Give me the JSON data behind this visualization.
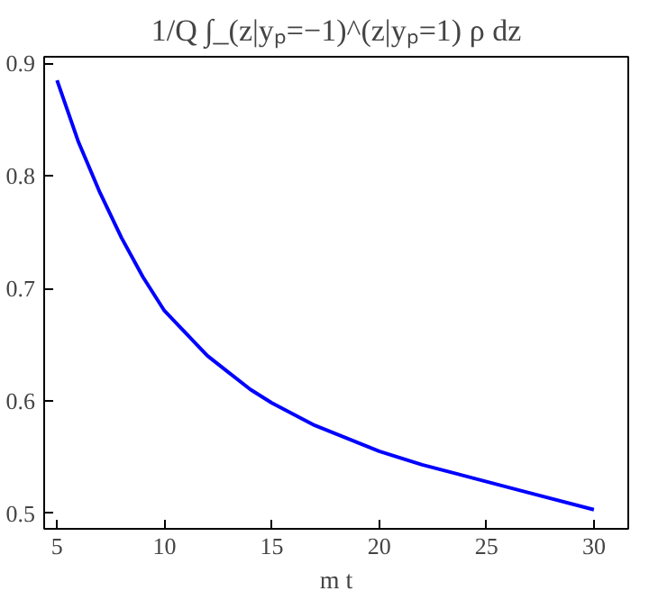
{
  "chart_data": {
    "type": "line",
    "title": "1/Q ∫_(z|yₚ=−1)^(z|yₚ=1) ρ dz",
    "xlabel": "m t",
    "x": [
      5,
      6,
      7,
      8,
      9,
      10,
      11,
      12,
      13,
      14,
      15,
      17,
      20,
      22,
      25,
      27,
      30
    ],
    "series": [
      {
        "color": "#0000ff",
        "values": [
          0.885,
          0.83,
          0.785,
          0.745,
          0.71,
          0.68,
          0.66,
          0.64,
          0.625,
          0.61,
          0.598,
          0.578,
          0.555,
          0.543,
          0.528,
          0.518,
          0.503
        ]
      }
    ],
    "xlim": [
      4.4,
      31.6
    ],
    "ylim": [
      0.486,
      0.906
    ],
    "xticks": [
      5,
      10,
      15,
      20,
      25,
      30
    ],
    "yticks": [
      0.5,
      0.6,
      0.7,
      0.8,
      0.9
    ],
    "grid": false
  }
}
